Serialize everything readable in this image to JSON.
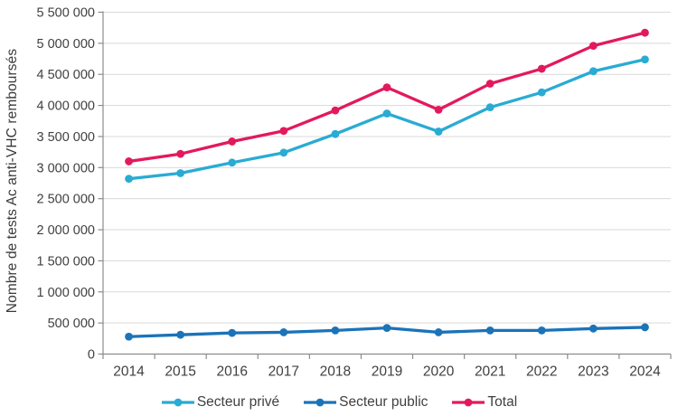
{
  "figure": {
    "background": "#FFFFFF",
    "text_color": "#404040",
    "gridline_color": "#D9D9D9",
    "axis_line_color": "#8C8C8C"
  },
  "chart_data": {
    "type": "line",
    "title": "",
    "xlabel": "",
    "ylabel": "Nombre de tests Ac anti-VHC remboursés",
    "categories": [
      "2014",
      "2015",
      "2016",
      "2017",
      "2018",
      "2019",
      "2020",
      "2021",
      "2022",
      "2023",
      "2024"
    ],
    "series": [
      {
        "name": "Secteur privé",
        "color": "#29ABD3",
        "values": [
          2820000,
          2910000,
          3080000,
          3240000,
          3540000,
          3870000,
          3580000,
          3970000,
          4210000,
          4550000,
          4740000
        ]
      },
      {
        "name": "Secteur public",
        "color": "#1B73B8",
        "values": [
          280000,
          310000,
          340000,
          350000,
          380000,
          420000,
          350000,
          380000,
          380000,
          410000,
          430000
        ]
      },
      {
        "name": "Total",
        "color": "#E3195E",
        "values": [
          3100000,
          3220000,
          3420000,
          3590000,
          3920000,
          4290000,
          3930000,
          4350000,
          4590000,
          4960000,
          5170000
        ]
      }
    ],
    "ylim": [
      0,
      5500000
    ],
    "y_tick_step": 500000,
    "y_tick_labels": [
      "0",
      "500 000",
      "1 000 000",
      "1 500 000",
      "2 000 000",
      "2 500 000",
      "3 000 000",
      "3 500 000",
      "4 000 000",
      "4 500 000",
      "5 000 000",
      "5 500 000"
    ],
    "grid": true,
    "legend_position": "bottom"
  }
}
